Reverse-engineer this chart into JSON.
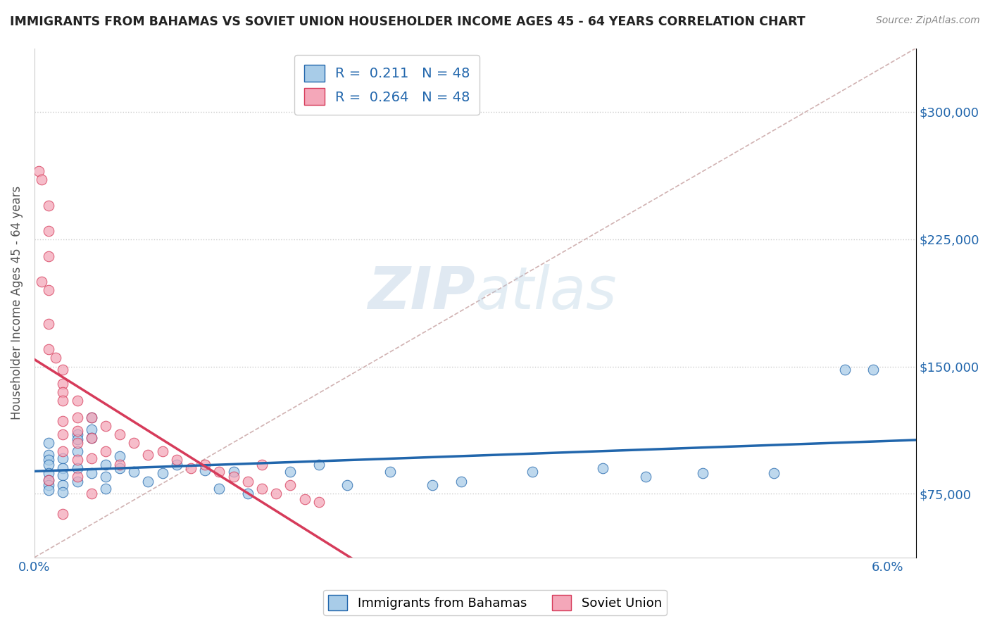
{
  "title": "IMMIGRANTS FROM BAHAMAS VS SOVIET UNION HOUSEHOLDER INCOME AGES 45 - 64 YEARS CORRELATION CHART",
  "source": "Source: ZipAtlas.com",
  "ylabel": "Householder Income Ages 45 - 64 years",
  "xlim": [
    0.0,
    0.062
  ],
  "ylim": [
    37500,
    337500
  ],
  "xticks": [
    0.0,
    0.01,
    0.02,
    0.03,
    0.04,
    0.05,
    0.06
  ],
  "xticklabels": [
    "0.0%",
    "",
    "",
    "",
    "",
    "",
    "6.0%"
  ],
  "ytick_positions": [
    75000,
    150000,
    225000,
    300000
  ],
  "ytick_labels": [
    "$75,000",
    "$150,000",
    "$225,000",
    "$300,000"
  ],
  "r_bahamas": 0.211,
  "n_bahamas": 48,
  "r_soviet": 0.264,
  "n_soviet": 48,
  "color_bahamas": "#a8cce8",
  "color_soviet": "#f4a7b9",
  "color_trend_bahamas": "#2166ac",
  "color_trend_soviet": "#d63b5a",
  "color_diag": "#ccaaaa",
  "background_color": "#ffffff",
  "grid_color": "#cccccc",
  "watermark_zip": "ZIP",
  "watermark_atlas": "atlas",
  "legend_label_bahamas": "Immigrants from Bahamas",
  "legend_label_soviet": "Soviet Union",
  "bahamas_x": [
    0.001,
    0.001,
    0.001,
    0.001,
    0.001,
    0.001,
    0.001,
    0.001,
    0.002,
    0.002,
    0.002,
    0.002,
    0.002,
    0.003,
    0.003,
    0.003,
    0.003,
    0.003,
    0.004,
    0.004,
    0.004,
    0.004,
    0.005,
    0.005,
    0.005,
    0.006,
    0.006,
    0.007,
    0.008,
    0.009,
    0.01,
    0.012,
    0.013,
    0.014,
    0.015,
    0.018,
    0.02,
    0.022,
    0.025,
    0.028,
    0.03,
    0.035,
    0.04,
    0.043,
    0.047,
    0.052,
    0.057,
    0.059
  ],
  "bahamas_y": [
    105000,
    98000,
    95000,
    92000,
    87000,
    83000,
    80000,
    77000,
    96000,
    90000,
    86000,
    80000,
    76000,
    110000,
    107000,
    100000,
    90000,
    82000,
    120000,
    113000,
    108000,
    87000,
    92000,
    85000,
    78000,
    97000,
    90000,
    88000,
    82000,
    87000,
    92000,
    89000,
    78000,
    88000,
    75000,
    88000,
    92000,
    80000,
    88000,
    80000,
    82000,
    88000,
    90000,
    85000,
    87000,
    87000,
    148000,
    148000
  ],
  "soviet_x": [
    0.0003,
    0.0005,
    0.0005,
    0.001,
    0.001,
    0.001,
    0.001,
    0.001,
    0.001,
    0.001,
    0.0015,
    0.002,
    0.002,
    0.002,
    0.002,
    0.002,
    0.002,
    0.002,
    0.002,
    0.003,
    0.003,
    0.003,
    0.003,
    0.003,
    0.003,
    0.004,
    0.004,
    0.004,
    0.004,
    0.005,
    0.005,
    0.006,
    0.006,
    0.007,
    0.008,
    0.009,
    0.01,
    0.011,
    0.012,
    0.013,
    0.014,
    0.015,
    0.016,
    0.016,
    0.017,
    0.018,
    0.019,
    0.02
  ],
  "soviet_y": [
    265000,
    260000,
    200000,
    245000,
    230000,
    215000,
    195000,
    175000,
    160000,
    83000,
    155000,
    148000,
    140000,
    135000,
    130000,
    118000,
    110000,
    100000,
    63000,
    130000,
    120000,
    112000,
    105000,
    95000,
    85000,
    120000,
    108000,
    96000,
    75000,
    115000,
    100000,
    110000,
    92000,
    105000,
    98000,
    100000,
    95000,
    90000,
    92000,
    88000,
    85000,
    82000,
    78000,
    92000,
    75000,
    80000,
    72000,
    70000
  ]
}
